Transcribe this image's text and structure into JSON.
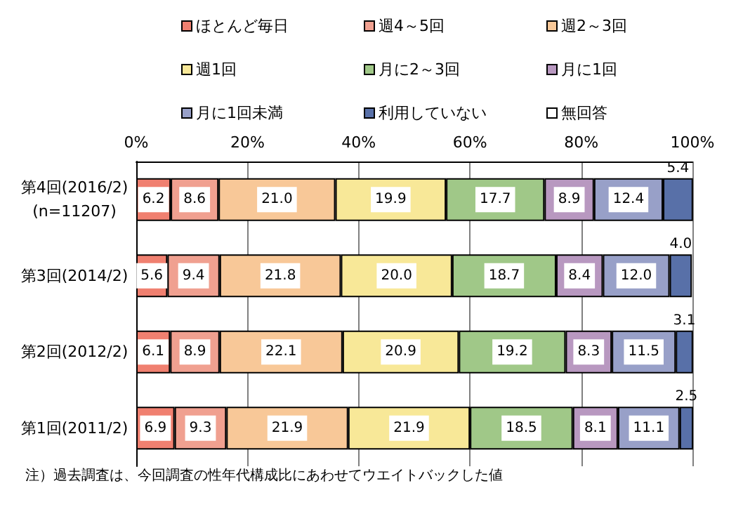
{
  "chart_data": {
    "type": "bar",
    "orientation": "horizontal",
    "stacked": true,
    "categories": [
      "第4回(2016/2)\n(n=11207)",
      "第3回(2014/2)",
      "第2回(2012/2)",
      "第1回(2011/2)"
    ],
    "series": [
      {
        "name": "ほとんど毎日",
        "color": "#f08070",
        "values": [
          6.2,
          5.6,
          6.1,
          6.9
        ],
        "value_labels": [
          "6.2",
          "5.6",
          "6.1",
          "6.9"
        ]
      },
      {
        "name": "週4～5回",
        "color": "#f0a090",
        "values": [
          8.6,
          9.4,
          8.9,
          9.3
        ],
        "value_labels": [
          "8.6",
          "9.4",
          "8.9",
          "9.3"
        ]
      },
      {
        "name": "週2～3回",
        "color": "#f8c898",
        "values": [
          21.0,
          21.8,
          22.1,
          21.9
        ],
        "value_labels": [
          "21.0",
          "21.8",
          "22.1",
          "21.9"
        ]
      },
      {
        "name": "週1回",
        "color": "#f8e898",
        "values": [
          19.9,
          20.0,
          20.9,
          21.9
        ],
        "value_labels": [
          "19.9",
          "20.0",
          "20.9",
          "21.9"
        ]
      },
      {
        "name": "月に2～3回",
        "color": "#a0c888",
        "values": [
          17.7,
          18.7,
          19.2,
          18.5
        ],
        "value_labels": [
          "17.7",
          "18.7",
          "19.2",
          "18.5"
        ]
      },
      {
        "name": "月に1回",
        "color": "#b898c0",
        "values": [
          8.9,
          8.4,
          8.3,
          8.1
        ],
        "value_labels": [
          "8.9",
          "8.4",
          "8.3",
          "8.1"
        ]
      },
      {
        "name": "月に1回未満",
        "color": "#98a0c8",
        "values": [
          12.4,
          12.0,
          11.5,
          11.1
        ],
        "value_labels": [
          "12.4",
          "12.0",
          "11.5",
          "11.1"
        ]
      },
      {
        "name": "利用していない",
        "color": "#5870a8",
        "values": [
          5.4,
          4.0,
          3.1,
          2.5
        ],
        "value_labels": [
          "5.4",
          "4.0",
          "3.1",
          "2.5"
        ]
      },
      {
        "name": "無回答",
        "color": "#ffffff",
        "values": [
          null,
          null,
          null,
          null
        ]
      }
    ],
    "xlim": [
      0,
      100
    ],
    "xticks": [
      {
        "value": 0,
        "label": "0%"
      },
      {
        "value": 20,
        "label": "20%"
      },
      {
        "value": 40,
        "label": "40%"
      },
      {
        "value": 60,
        "label": "60%"
      },
      {
        "value": 80,
        "label": "80%"
      },
      {
        "value": 100,
        "label": "100%"
      }
    ],
    "grid": "x",
    "legend": "top",
    "annotations": [
      "注）過去調査は、今回調査の性年代構成比にあわせてウエイトバックした値"
    ]
  }
}
